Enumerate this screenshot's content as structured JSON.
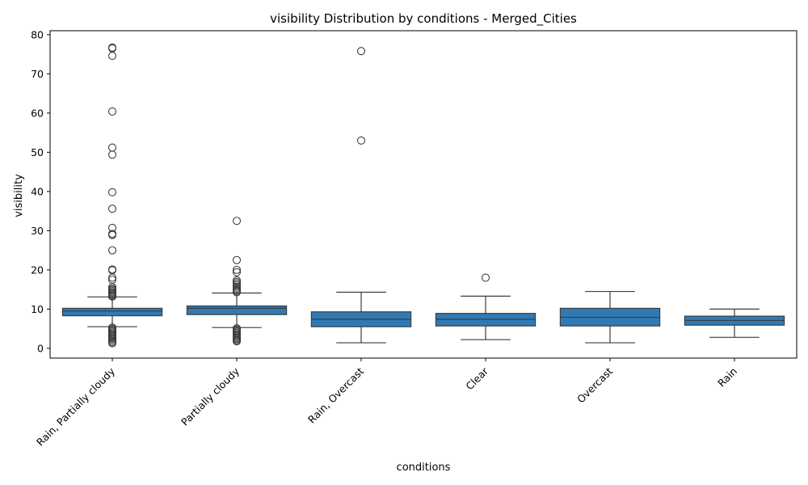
{
  "chart_data": {
    "type": "boxplot",
    "title": "visibility Distribution by conditions - Merged_Cities",
    "xlabel": "conditions",
    "ylabel": "visibility",
    "ylim": [
      -2.5,
      81
    ],
    "yticks": [
      0,
      10,
      20,
      30,
      40,
      50,
      60,
      70,
      80
    ],
    "grid": false,
    "box_color": "#2f7ab5",
    "line_color": "#3d3d3d",
    "categories": [
      "Rain, Partially cloudy",
      "Partially cloudy",
      "Rain, Overcast",
      "Clear",
      "Overcast",
      "Rain"
    ],
    "boxes": [
      {
        "whisker_low": 5.5,
        "q1": 8.3,
        "median": 9.5,
        "q3": 10.2,
        "whisker_high": 13.1,
        "outliers": [
          76.7,
          76.5,
          74.6,
          60.4,
          51.2,
          49.4,
          39.8,
          35.6,
          30.7,
          29.2,
          28.9,
          25.0,
          20.1,
          19.9,
          18.0,
          17.5,
          15.6,
          15.2,
          14.9,
          14.6,
          14.3,
          14.0,
          13.7,
          13.4,
          13.2,
          5.3,
          5.0,
          4.7,
          4.4,
          4.1,
          3.8,
          3.5,
          3.2,
          2.9,
          2.6,
          2.3,
          1.9,
          1.5,
          1.3
        ]
      },
      {
        "whisker_low": 5.3,
        "q1": 8.6,
        "median": 10.2,
        "q3": 10.8,
        "whisker_high": 14.1,
        "outliers": [
          32.5,
          22.5,
          20.0,
          19.4,
          17.3,
          16.9,
          16.5,
          16.1,
          15.7,
          15.3,
          14.9,
          14.6,
          14.3,
          5.1,
          4.8,
          4.5,
          4.2,
          3.9,
          3.6,
          3.3,
          3.0,
          2.7,
          2.4,
          2.1,
          1.8
        ]
      },
      {
        "whisker_low": 1.4,
        "q1": 5.5,
        "median": 7.4,
        "q3": 9.3,
        "whisker_high": 14.3,
        "outliers": [
          75.8,
          53.0
        ]
      },
      {
        "whisker_low": 2.2,
        "q1": 5.7,
        "median": 7.4,
        "q3": 8.9,
        "whisker_high": 13.3,
        "outliers": [
          18.0
        ]
      },
      {
        "whisker_low": 1.4,
        "q1": 5.7,
        "median": 7.9,
        "q3": 10.2,
        "whisker_high": 14.5,
        "outliers": []
      },
      {
        "whisker_low": 2.8,
        "q1": 5.9,
        "median": 7.1,
        "q3": 8.2,
        "whisker_high": 10.0,
        "outliers": []
      }
    ]
  }
}
